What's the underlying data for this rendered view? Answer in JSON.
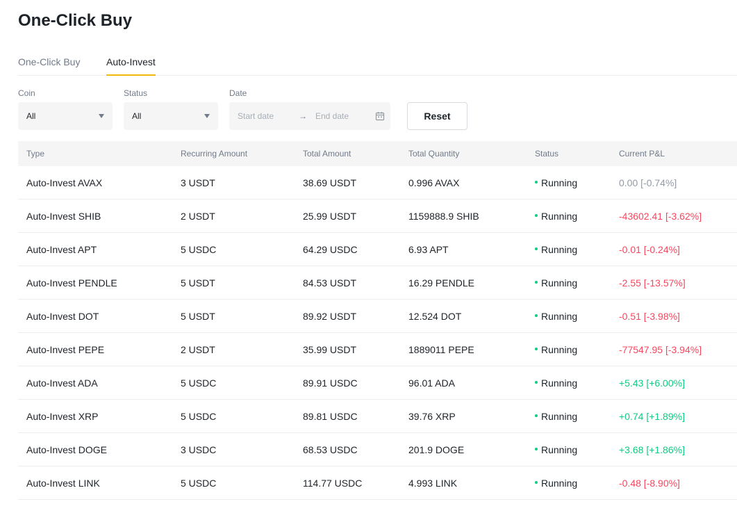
{
  "page_title": "One-Click Buy",
  "tabs": [
    {
      "label": "One-Click Buy",
      "active": false
    },
    {
      "label": "Auto-Invest",
      "active": true
    }
  ],
  "filters": {
    "coin": {
      "label": "Coin",
      "value": "All"
    },
    "status": {
      "label": "Status",
      "value": "All"
    },
    "date": {
      "label": "Date",
      "start_placeholder": "Start date",
      "end_placeholder": "End date",
      "separator": "→"
    },
    "reset_label": "Reset"
  },
  "table": {
    "columns": [
      "Type",
      "Recurring Amount",
      "Total Amount",
      "Total Quantity",
      "Status",
      "Current P&L"
    ],
    "rows": [
      {
        "type": "Auto-Invest AVAX",
        "recurring": "3 USDT",
        "total": "38.69 USDT",
        "quantity": "0.996 AVAX",
        "status": "Running",
        "pnl": "0.00 [-0.74%]",
        "pnl_tone": "neutral"
      },
      {
        "type": "Auto-Invest SHIB",
        "recurring": "2 USDT",
        "total": "25.99 USDT",
        "quantity": "1159888.9 SHIB",
        "status": "Running",
        "pnl": "-43602.41 [-3.62%]",
        "pnl_tone": "neg"
      },
      {
        "type": "Auto-Invest APT",
        "recurring": "5 USDC",
        "total": "64.29 USDC",
        "quantity": "6.93 APT",
        "status": "Running",
        "pnl": "-0.01 [-0.24%]",
        "pnl_tone": "neg"
      },
      {
        "type": "Auto-Invest PENDLE",
        "recurring": "5 USDT",
        "total": "84.53 USDT",
        "quantity": "16.29 PENDLE",
        "status": "Running",
        "pnl": "-2.55 [-13.57%]",
        "pnl_tone": "neg"
      },
      {
        "type": "Auto-Invest DOT",
        "recurring": "5 USDT",
        "total": "89.92 USDT",
        "quantity": "12.524 DOT",
        "status": "Running",
        "pnl": "-0.51 [-3.98%]",
        "pnl_tone": "neg"
      },
      {
        "type": "Auto-Invest PEPE",
        "recurring": "2 USDT",
        "total": "35.99 USDT",
        "quantity": "1889011 PEPE",
        "status": "Running",
        "pnl": "-77547.95 [-3.94%]",
        "pnl_tone": "neg"
      },
      {
        "type": "Auto-Invest ADA",
        "recurring": "5 USDC",
        "total": "89.91 USDC",
        "quantity": "96.01 ADA",
        "status": "Running",
        "pnl": "+5.43 [+6.00%]",
        "pnl_tone": "pos"
      },
      {
        "type": "Auto-Invest XRP",
        "recurring": "5 USDC",
        "total": "89.81 USDC",
        "quantity": "39.76 XRP",
        "status": "Running",
        "pnl": "+0.74 [+1.89%]",
        "pnl_tone": "pos"
      },
      {
        "type": "Auto-Invest DOGE",
        "recurring": "3 USDC",
        "total": "68.53 USDC",
        "quantity": "201.9 DOGE",
        "status": "Running",
        "pnl": "+3.68 [+1.86%]",
        "pnl_tone": "pos"
      },
      {
        "type": "Auto-Invest LINK",
        "recurring": "5 USDC",
        "total": "114.77 USDC",
        "quantity": "4.993 LINK",
        "status": "Running",
        "pnl": "-0.48 [-8.90%]",
        "pnl_tone": "neg"
      }
    ]
  },
  "colors": {
    "accent": "#f0b90b",
    "running": "#0ecb81",
    "negative": "#f6465d",
    "positive": "#0ecb81",
    "neutral": "#929aa5"
  }
}
